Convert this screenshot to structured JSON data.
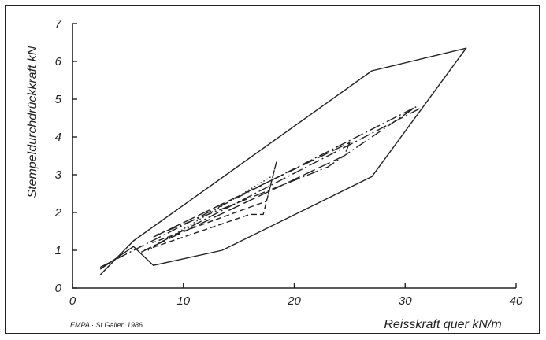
{
  "chart_data": {
    "type": "line",
    "title": "",
    "xlabel": "Reisskraft quer kN/m",
    "ylabel": "Stempeldurchdrückkraft kN",
    "xlim": [
      0,
      40
    ],
    "ylim": [
      0,
      7
    ],
    "x_ticks": [
      "0",
      "10",
      "20",
      "30",
      "40"
    ],
    "y_ticks": [
      "0",
      "1",
      "2",
      "3",
      "4",
      "5",
      "6",
      "7"
    ],
    "grid": false,
    "legend": "none",
    "credit": "EMPA · St.Gallen 1986",
    "series": [
      {
        "style": "solid",
        "points": [
          [
            2.5,
            0.35
          ],
          [
            5.5,
            1.25
          ],
          [
            27,
            5.75
          ],
          [
            35.5,
            6.35
          ],
          [
            27,
            2.95
          ],
          [
            13.5,
            1.0
          ],
          [
            7.3,
            0.6
          ],
          [
            5.5,
            1.1
          ],
          [
            2.5,
            0.5
          ]
        ]
      },
      {
        "style": "dash-dot",
        "points": [
          [
            2.5,
            0.55
          ],
          [
            31,
            4.8
          ],
          [
            23,
            3.2
          ],
          [
            7.5,
            1.4
          ]
        ]
      },
      {
        "style": "long-dash",
        "points": [
          [
            7.3,
            1.35
          ],
          [
            25,
            3.85
          ],
          [
            24.5,
            3.5
          ],
          [
            6.5,
            1.0
          ]
        ]
      },
      {
        "style": "dash-dot",
        "points": [
          [
            6.2,
            0.95
          ],
          [
            31.3,
            4.75
          ]
        ]
      },
      {
        "style": "short-dash",
        "points": [
          [
            6.5,
            1.0
          ],
          [
            16.0,
            1.95
          ],
          [
            17.2,
            1.95
          ],
          [
            18.4,
            3.35
          ],
          [
            17.5,
            2.3
          ],
          [
            7.2,
            1.2
          ]
        ]
      },
      {
        "style": "dotted",
        "points": [
          [
            6.8,
            1.0
          ],
          [
            18.2,
            3.0
          ]
        ]
      }
    ]
  }
}
